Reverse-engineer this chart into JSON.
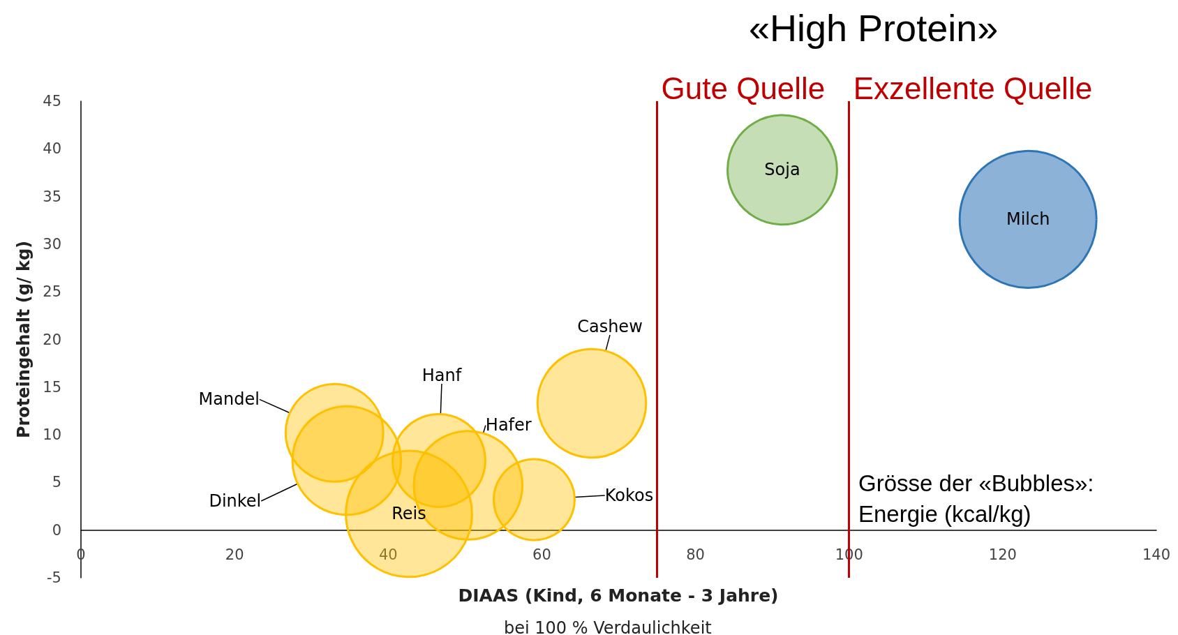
{
  "chart_data": {
    "type": "bubble",
    "title": "«High Protein»",
    "xlabel": "DIAAS (Kind, 6 Monate - 3 Jahre)",
    "ylabel": "Proteingehalt (g/ kg)",
    "series": [
      {
        "name": "Cashew",
        "color": "#ffc000",
        "x": [
          66.5
        ],
        "values": [
          13.3
        ],
        "sizes": [
          0.63
        ]
      },
      {
        "name": "Kokos",
        "color": "#ffc000",
        "x": [
          59
        ],
        "values": [
          3.2
        ],
        "sizes": [
          0.35
        ]
      },
      {
        "name": "Hafer",
        "color": "#ffc000",
        "x": [
          50.4
        ],
        "values": [
          4.7
        ],
        "sizes": [
          0.63
        ]
      },
      {
        "name": "Hanf",
        "color": "#ffc000",
        "x": [
          46.6
        ],
        "values": [
          7.3
        ],
        "sizes": [
          0.46
        ]
      },
      {
        "name": "Reis",
        "color": "#ffc000",
        "x": [
          42.7
        ],
        "values": [
          1.7
        ],
        "sizes": [
          0.85
        ]
      },
      {
        "name": "Dinkel",
        "color": "#ffc000",
        "x": [
          34.6
        ],
        "values": [
          7.3
        ],
        "sizes": [
          0.63
        ]
      },
      {
        "name": "Mandel",
        "color": "#ffc000",
        "x": [
          33
        ],
        "values": [
          10.2
        ],
        "sizes": [
          0.51
        ]
      },
      {
        "name": "Soja",
        "color": "#70ad47",
        "x": [
          91.3
        ],
        "values": [
          37.8
        ],
        "sizes": [
          0.64
        ]
      },
      {
        "name": "Milch",
        "color": "#2e75b6",
        "x": [
          123.3
        ],
        "values": [
          32.6
        ],
        "sizes": [
          1
        ]
      }
    ],
    "xlim": [
      0,
      140
    ],
    "xticks": [
      0,
      20,
      40,
      60,
      80,
      100,
      120,
      140
    ],
    "ylim": [
      -5,
      45
    ],
    "yticks": [
      -5,
      0,
      5,
      10,
      15,
      20,
      25,
      30,
      35,
      40,
      45
    ],
    "ref_lines": [
      {
        "axis": "x",
        "value": 75,
        "label": "Gute Quelle",
        "color": "#c00000"
      },
      {
        "axis": "x",
        "value": 100,
        "label": "Exzellente Quelle",
        "color": "#c00000"
      }
    ],
    "annotations": [
      "bei 100 % Verdaulichkeit",
      "Grösse der «Bubbles»: Energie (kcal/kg)"
    ],
    "grid": false,
    "legend": false
  }
}
